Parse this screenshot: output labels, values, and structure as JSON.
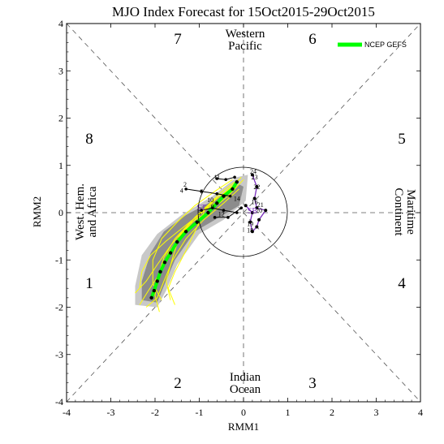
{
  "chart_data": {
    "type": "line",
    "title": "MJO Index Forecast for 15Oct2015-29Oct2015",
    "xlabel": "RMM1",
    "ylabel": "RMM2",
    "xlim": [
      -4,
      4
    ],
    "ylim": [
      -4,
      4
    ],
    "x_ticks": [
      "-4",
      "-3",
      "-2",
      "-1",
      "0",
      "1",
      "2",
      "3",
      "4"
    ],
    "y_ticks": [
      "-4",
      "-3",
      "-2",
      "-1",
      "0",
      "1",
      "2",
      "3",
      "4"
    ],
    "phases": [
      "1",
      "2",
      "3",
      "4",
      "5",
      "6",
      "7",
      "8"
    ],
    "regions": {
      "top": [
        "Western",
        "Pacific"
      ],
      "bottom": [
        "Indian",
        "Ocean"
      ],
      "left": [
        "West. Hem.",
        "and Africa"
      ],
      "right": [
        "Maritime",
        "Continent"
      ]
    },
    "legend": {
      "label": "NCEP GEFS",
      "color": "#00ff00",
      "position": "top-right"
    },
    "colors": {
      "ensemble_mean": "#00ff00",
      "ensemble_members": "#ffff00",
      "spread_light": "#c8c8c8",
      "spread_dark": "#8c8c8c",
      "observed": "#7b2fbe",
      "other_tracks": "#000000"
    },
    "spread_outer": [
      [
        -2.45,
        -1.95
      ],
      [
        -2.45,
        -1.55
      ],
      [
        -2.3,
        -0.9
      ],
      [
        -1.95,
        -0.45
      ],
      [
        -1.4,
        -0.05
      ],
      [
        -0.7,
        0.35
      ],
      [
        -0.15,
        0.75
      ],
      [
        0.1,
        0.8
      ],
      [
        0.05,
        0.25
      ],
      [
        -0.45,
        -0.15
      ],
      [
        -1.0,
        -0.45
      ],
      [
        -1.5,
        -1.1
      ],
      [
        -1.75,
        -1.65
      ],
      [
        -1.95,
        -2.0
      ]
    ],
    "spread_inner": [
      [
        -2.3,
        -1.85
      ],
      [
        -2.3,
        -1.45
      ],
      [
        -2.1,
        -0.85
      ],
      [
        -1.8,
        -0.4
      ],
      [
        -1.3,
        -0.05
      ],
      [
        -0.6,
        0.3
      ],
      [
        -0.1,
        0.6
      ],
      [
        0.0,
        0.55
      ],
      [
        -0.1,
        0.15
      ],
      [
        -0.55,
        -0.1
      ],
      [
        -1.1,
        -0.4
      ],
      [
        -1.55,
        -1.0
      ],
      [
        -1.8,
        -1.55
      ],
      [
        -1.95,
        -1.9
      ]
    ],
    "ensemble_mean": [
      [
        -0.15,
        0.65
      ],
      [
        -0.25,
        0.5
      ],
      [
        -0.45,
        0.35
      ],
      [
        -0.6,
        0.2
      ],
      [
        -0.8,
        0.0
      ],
      [
        -1.05,
        -0.2
      ],
      [
        -1.3,
        -0.4
      ],
      [
        -1.5,
        -0.62
      ],
      [
        -1.65,
        -0.85
      ],
      [
        -1.78,
        -1.05
      ],
      [
        -1.88,
        -1.25
      ],
      [
        -1.95,
        -1.45
      ],
      [
        -2.02,
        -1.65
      ],
      [
        -2.08,
        -1.8
      ]
    ],
    "ensemble_members": [
      [
        [
          -0.1,
          0.7
        ],
        [
          -0.4,
          0.45
        ],
        [
          -0.8,
          0.15
        ],
        [
          -1.2,
          -0.2
        ],
        [
          -1.55,
          -0.55
        ],
        [
          -1.8,
          -0.95
        ],
        [
          -1.95,
          -1.4
        ],
        [
          -2.0,
          -1.75
        ],
        [
          -1.9,
          -2.1
        ]
      ],
      [
        [
          -0.2,
          0.6
        ],
        [
          -0.6,
          0.3
        ],
        [
          -1.0,
          -0.05
        ],
        [
          -1.4,
          -0.45
        ],
        [
          -1.7,
          -0.85
        ],
        [
          -1.9,
          -1.3
        ],
        [
          -2.15,
          -1.65
        ],
        [
          -2.35,
          -1.95
        ]
      ],
      [
        [
          -0.05,
          0.75
        ],
        [
          -0.3,
          0.5
        ],
        [
          -0.7,
          0.25
        ],
        [
          -1.1,
          -0.1
        ],
        [
          -1.45,
          -0.5
        ],
        [
          -1.6,
          -0.95
        ],
        [
          -1.75,
          -1.45
        ],
        [
          -1.65,
          -1.85
        ]
      ],
      [
        [
          -0.15,
          0.55
        ],
        [
          -0.5,
          0.3
        ],
        [
          -0.95,
          0.0
        ],
        [
          -1.35,
          -0.3
        ],
        [
          -1.75,
          -0.6
        ],
        [
          -2.1,
          -0.9
        ],
        [
          -2.3,
          -1.25
        ],
        [
          -2.35,
          -1.6
        ]
      ],
      [
        [
          -0.2,
          0.65
        ],
        [
          -0.55,
          0.4
        ],
        [
          -0.85,
          0.1
        ],
        [
          -1.05,
          -0.3
        ],
        [
          -1.3,
          -0.8
        ],
        [
          -1.55,
          -1.25
        ],
        [
          -1.7,
          -1.6
        ],
        [
          -1.55,
          -1.95
        ]
      ],
      [
        [
          0.0,
          0.7
        ],
        [
          -0.35,
          0.35
        ],
        [
          -0.75,
          0.05
        ],
        [
          -1.25,
          -0.25
        ],
        [
          -1.65,
          -0.7
        ],
        [
          -1.95,
          -1.1
        ],
        [
          -2.2,
          -1.45
        ],
        [
          -2.45,
          -1.7
        ]
      ],
      [
        [
          -0.1,
          0.5
        ],
        [
          -0.45,
          0.2
        ],
        [
          -0.9,
          -0.15
        ],
        [
          -1.3,
          -0.55
        ],
        [
          -1.6,
          -1.0
        ],
        [
          -1.8,
          -1.45
        ],
        [
          -1.95,
          -1.8
        ],
        [
          -2.2,
          -2.0
        ]
      ],
      [
        [
          -0.25,
          0.7
        ],
        [
          -0.65,
          0.45
        ],
        [
          -1.1,
          0.15
        ],
        [
          -1.5,
          -0.2
        ],
        [
          -1.85,
          -0.55
        ],
        [
          -2.05,
          -1.0
        ],
        [
          -2.05,
          -1.5
        ],
        [
          -1.85,
          -1.85
        ]
      ]
    ],
    "observed": [
      [
        0.2,
        0.8
      ],
      [
        0.3,
        0.55
      ],
      [
        0.25,
        0.3
      ],
      [
        0.3,
        0.1
      ],
      [
        0.5,
        0.05
      ],
      [
        0.35,
        -0.15
      ],
      [
        0.3,
        -0.3
      ],
      [
        0.2,
        -0.4
      ],
      [
        0.15,
        -0.2
      ],
      [
        0.2,
        0.0
      ],
      [
        0.05,
        0.15
      ]
    ],
    "observed_labels": [
      {
        "text": "24",
        "x": 0.22,
        "y": 0.82
      },
      {
        "text": "23",
        "x": 0.25,
        "y": 0.7
      },
      {
        "text": "22",
        "x": 0.3,
        "y": 0.5
      },
      {
        "text": "21",
        "x": 0.38,
        "y": 0.12
      },
      {
        "text": "20",
        "x": 0.35,
        "y": 0.0
      },
      {
        "text": "19",
        "x": 0.15,
        "y": -0.28
      },
      {
        "text": "18",
        "x": 0.15,
        "y": -0.42
      },
      {
        "text": "16",
        "x": 0.25,
        "y": 0.18
      },
      {
        "text": "14",
        "x": -0.15,
        "y": 0.25
      },
      {
        "text": "12",
        "x": -0.5,
        "y": -0.08
      },
      {
        "text": "10",
        "x": -0.75,
        "y": 0.22
      },
      {
        "text": "9",
        "x": -0.7,
        "y": 0.08
      },
      {
        "text": "5",
        "x": -1.0,
        "y": -0.05
      },
      {
        "text": "6",
        "x": -0.95,
        "y": 0.4
      },
      {
        "text": "4",
        "x": -1.4,
        "y": 0.42
      },
      {
        "text": "2",
        "x": -1.32,
        "y": 0.55
      },
      {
        "text": "11",
        "x": -0.6,
        "y": 0.7
      }
    ],
    "other_tracks": [
      [
        [
          -1.3,
          0.5
        ],
        [
          -0.95,
          0.45
        ],
        [
          -0.6,
          0.4
        ],
        [
          -0.3,
          0.35
        ]
      ],
      [
        [
          -0.6,
          0.72
        ],
        [
          -0.4,
          0.7
        ],
        [
          -0.2,
          0.75
        ]
      ],
      [
        [
          -0.95,
          0.05
        ],
        [
          -0.7,
          0.1
        ],
        [
          -0.45,
          0.05
        ],
        [
          -0.15,
          0.0
        ]
      ],
      [
        [
          -0.65,
          -0.1
        ],
        [
          -0.35,
          -0.1
        ],
        [
          -0.05,
          0.1
        ]
      ]
    ],
    "annotations": [
      {
        "text": "ST",
        "x": -0.95,
        "y": 0.05,
        "color": "#7b2fbe"
      },
      {
        "text": "SB",
        "x": 0.2,
        "y": -0.02,
        "color": "#7b2fbe"
      }
    ]
  }
}
